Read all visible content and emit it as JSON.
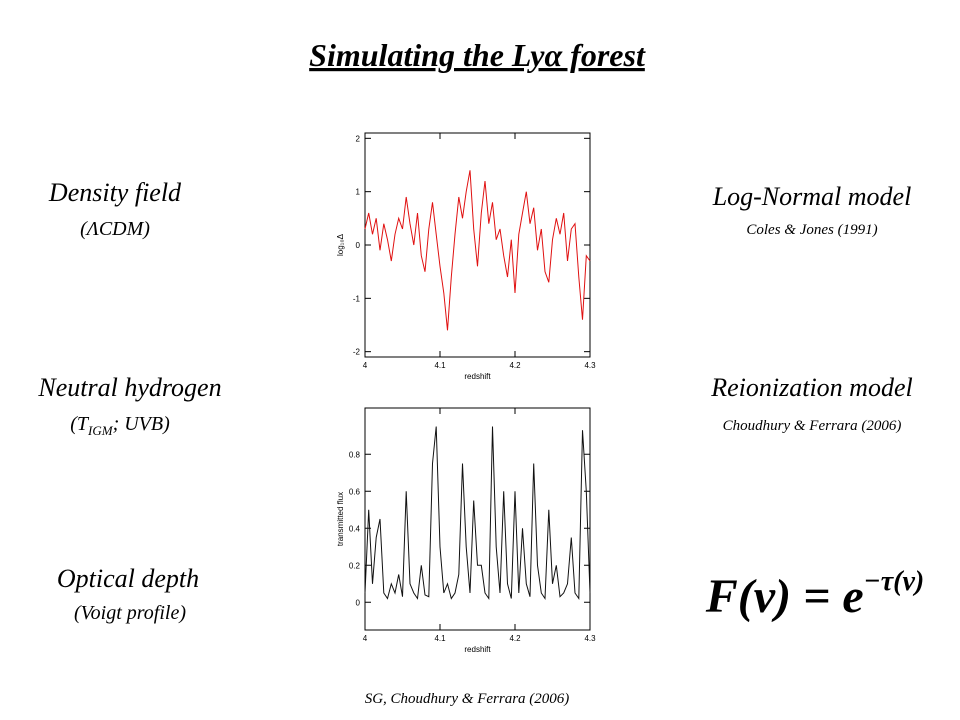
{
  "title": "Simulating the Lyα forest",
  "left": {
    "density": "Density field",
    "density_sub": "(ΛCDM)",
    "neutral": "Neutral hydrogen",
    "neutral_sub": [
      "(T",
      "IGM",
      "; UVB)"
    ],
    "optical": "Optical depth",
    "optical_sub": "(Voigt profile)"
  },
  "right": {
    "lognormal": "Log-Normal model",
    "lognormal_ref": "Coles & Jones (1991)",
    "reion": "Reionization model",
    "reion_ref": "Choudhury & Ferrara (2006)",
    "formula": [
      "F(ν) = e",
      "−τ(ν)"
    ]
  },
  "footer": "SG, Choudhury & Ferrara (2006)",
  "chart_data": [
    {
      "type": "line",
      "xlabel": "redshift",
      "ylabel": "log₁₀Δ",
      "x": [
        4,
        4.005,
        4.01,
        4.015,
        4.02,
        4.025,
        4.03,
        4.035,
        4.04,
        4.045,
        4.05,
        4.055,
        4.06,
        4.065,
        4.07,
        4.075,
        4.08,
        4.085,
        4.09,
        4.095,
        4.1,
        4.105,
        4.11,
        4.115,
        4.12,
        4.125,
        4.13,
        4.135,
        4.14,
        4.145,
        4.15,
        4.155,
        4.16,
        4.165,
        4.17,
        4.175,
        4.18,
        4.185,
        4.19,
        4.195,
        4.2,
        4.205,
        4.21,
        4.215,
        4.22,
        4.225,
        4.23,
        4.235,
        4.24,
        4.245,
        4.25,
        4.255,
        4.26,
        4.265,
        4.27,
        4.275,
        4.28,
        4.285,
        4.29,
        4.295,
        4.3
      ],
      "series": [
        {
          "color": "#e01010",
          "values": [
            0.3,
            0.6,
            0.2,
            0.5,
            -0.1,
            0.4,
            0.1,
            -0.3,
            0.2,
            0.5,
            0.3,
            0.9,
            0.4,
            0.0,
            0.6,
            -0.2,
            -0.5,
            0.3,
            0.8,
            0.2,
            -0.4,
            -0.9,
            -1.6,
            -0.6,
            0.2,
            0.9,
            0.5,
            1.0,
            1.4,
            0.3,
            -0.4,
            0.6,
            1.2,
            0.4,
            0.8,
            0.1,
            0.3,
            -0.2,
            -0.6,
            0.1,
            -0.9,
            0.2,
            0.6,
            1.0,
            0.4,
            0.7,
            -0.1,
            0.3,
            -0.5,
            -0.7,
            0.1,
            0.5,
            0.2,
            0.6,
            -0.3,
            0.3,
            0.4,
            -0.6,
            -1.4,
            -0.2,
            -0.3
          ]
        }
      ],
      "xlim": [
        4,
        4.3
      ],
      "xticks": [
        4,
        4.1,
        4.2,
        4.3
      ],
      "ylim": [
        -2.1,
        2.1
      ],
      "yticks": [
        -2,
        -1,
        0,
        1,
        2
      ]
    },
    {
      "type": "line",
      "xlabel": "redshift",
      "ylabel": "transmitted flux",
      "x": [
        4,
        4.005,
        4.01,
        4.015,
        4.02,
        4.025,
        4.03,
        4.035,
        4.04,
        4.045,
        4.05,
        4.055,
        4.06,
        4.065,
        4.07,
        4.075,
        4.08,
        4.085,
        4.09,
        4.095,
        4.1,
        4.105,
        4.11,
        4.115,
        4.12,
        4.125,
        4.13,
        4.135,
        4.14,
        4.145,
        4.15,
        4.155,
        4.16,
        4.165,
        4.17,
        4.175,
        4.18,
        4.185,
        4.19,
        4.195,
        4.2,
        4.205,
        4.21,
        4.215,
        4.22,
        4.225,
        4.23,
        4.235,
        4.24,
        4.245,
        4.25,
        4.255,
        4.26,
        4.265,
        4.27,
        4.275,
        4.28,
        4.285,
        4.29,
        4.295,
        4.3
      ],
      "series": [
        {
          "color": "#111111",
          "values": [
            0.05,
            0.5,
            0.1,
            0.35,
            0.45,
            0.05,
            0.02,
            0.1,
            0.05,
            0.15,
            0.03,
            0.6,
            0.1,
            0.05,
            0.02,
            0.2,
            0.04,
            0.03,
            0.75,
            0.95,
            0.3,
            0.05,
            0.1,
            0.02,
            0.05,
            0.15,
            0.75,
            0.3,
            0.05,
            0.55,
            0.2,
            0.2,
            0.05,
            0.02,
            0.95,
            0.3,
            0.05,
            0.6,
            0.1,
            0.02,
            0.6,
            0.05,
            0.4,
            0.1,
            0.03,
            0.75,
            0.2,
            0.05,
            0.02,
            0.5,
            0.1,
            0.2,
            0.03,
            0.05,
            0.1,
            0.35,
            0.05,
            0.02,
            0.93,
            0.6,
            0.05
          ]
        }
      ],
      "xlim": [
        4,
        4.3
      ],
      "xticks": [
        4,
        4.1,
        4.2,
        4.3
      ],
      "ylim": [
        -0.15,
        1.05
      ],
      "yticks": [
        0,
        0.2,
        0.4,
        0.6,
        0.8
      ]
    }
  ]
}
